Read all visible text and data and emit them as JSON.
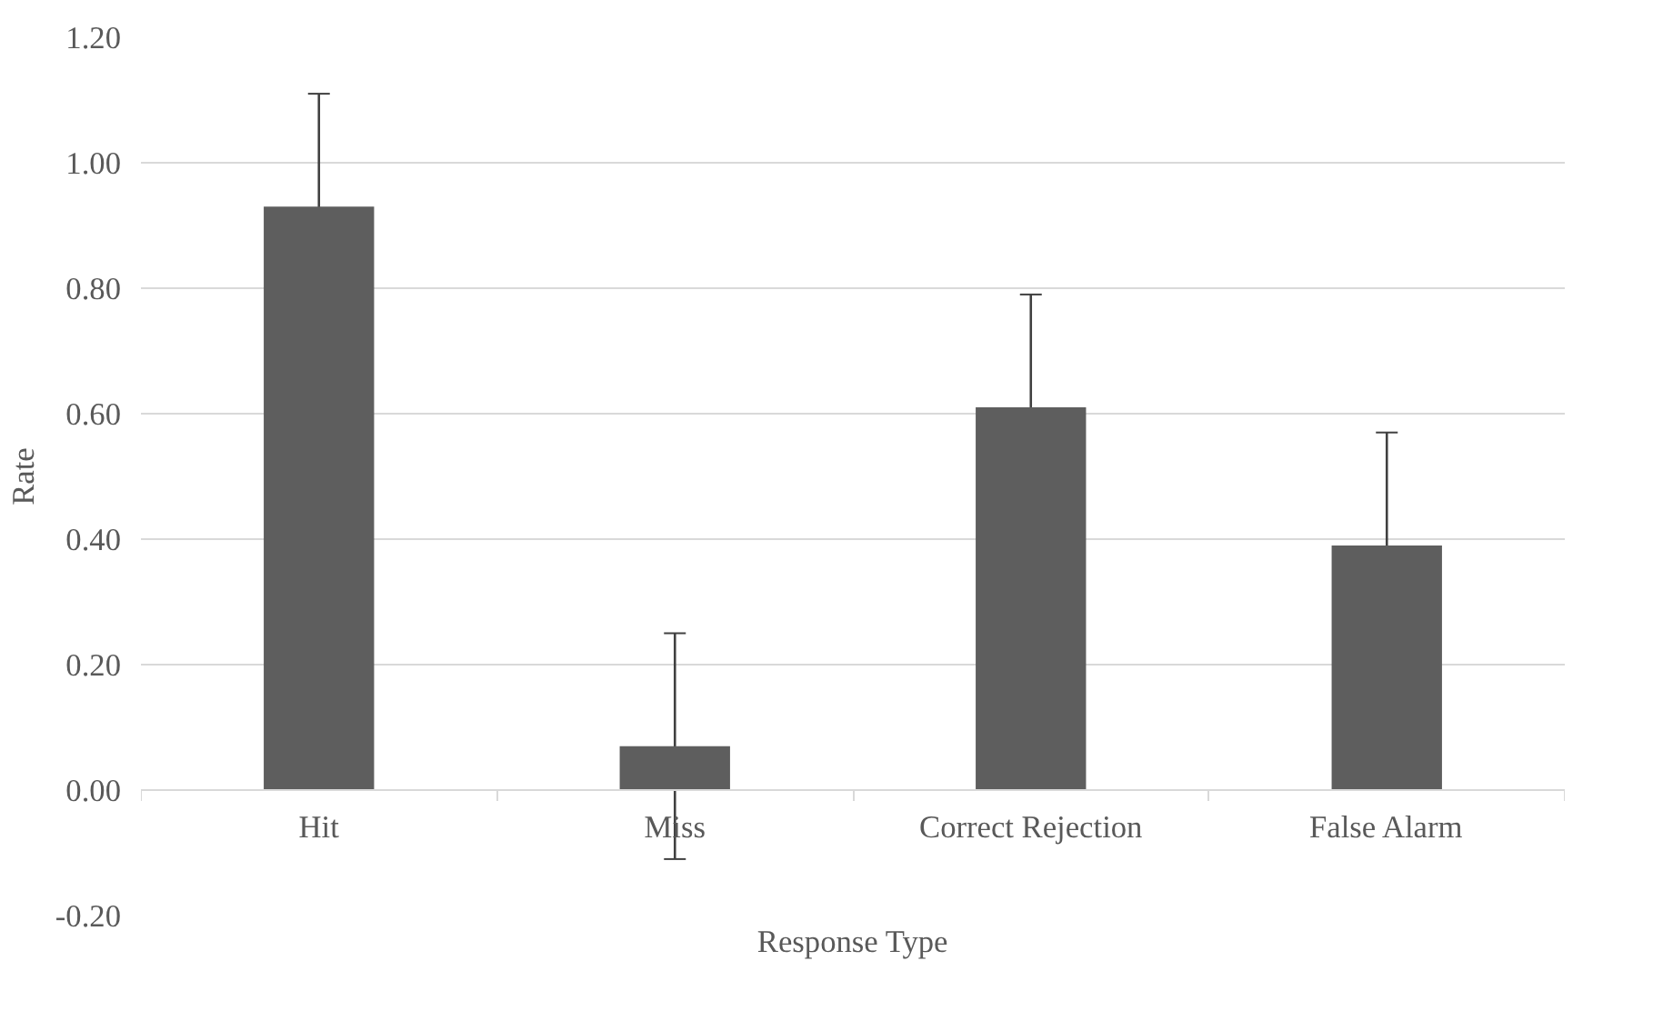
{
  "chart_data": {
    "type": "bar",
    "xlabel": "Response Type",
    "ylabel": "Rate",
    "categories": [
      "Hit",
      "Miss",
      "Correct Rejection",
      "False Alarm"
    ],
    "values": [
      0.93,
      0.07,
      0.61,
      0.39
    ],
    "errors": [
      0.18,
      0.18,
      0.18,
      0.18
    ],
    "color": "#5e5e5e",
    "ylim": [
      -0.2,
      1.2
    ],
    "yticks": [
      {
        "value": -0.2,
        "label": "-0.20"
      },
      {
        "value": 0,
        "label": "0.00"
      },
      {
        "value": 0.2,
        "label": "0.20"
      },
      {
        "value": 0.4,
        "label": "0.40"
      },
      {
        "value": 0.6,
        "label": "0.60"
      },
      {
        "value": 0.8,
        "label": "0.80"
      },
      {
        "value": 1.0,
        "label": "1.00"
      },
      {
        "value": 1.2,
        "label": "1.20"
      }
    ],
    "grid": "y"
  }
}
